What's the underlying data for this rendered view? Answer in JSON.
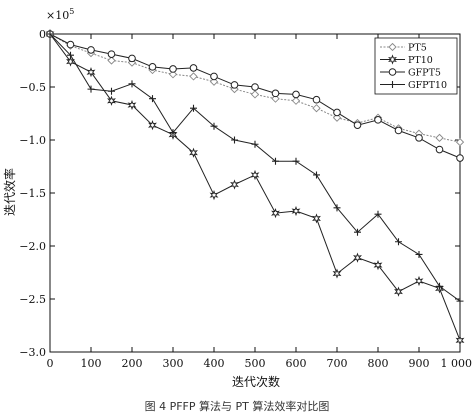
{
  "figure": {
    "caption": "图 4 PFFP 算法与 PT 算法效率对比图"
  },
  "chart_data": {
    "type": "line",
    "title": "",
    "xlabel": "迭代次数",
    "ylabel": "迭代效率",
    "y_multiplier_label": "×10^5",
    "xlim": [
      0,
      1000
    ],
    "ylim": [
      -3.0,
      0
    ],
    "x_ticks": [
      0,
      100,
      200,
      300,
      400,
      500,
      600,
      700,
      800,
      900,
      1000
    ],
    "x_tick_labels": [
      "0",
      "100",
      "200",
      "300",
      "400",
      "500",
      "600",
      "700",
      "800",
      "900",
      "1 000"
    ],
    "y_ticks": [
      0,
      -0.5,
      -1.0,
      -1.5,
      -2.0,
      -2.5,
      -3.0
    ],
    "y_tick_labels": [
      "0",
      "−0.5",
      "−1.0",
      "−1.5",
      "−2.0",
      "−2.5",
      "−3.0"
    ],
    "grid": false,
    "legend_position": "top-right",
    "x": [
      0,
      50,
      100,
      150,
      200,
      250,
      300,
      350,
      400,
      450,
      500,
      550,
      600,
      650,
      700,
      750,
      800,
      850,
      900,
      950,
      1000
    ],
    "series": [
      {
        "name": "PT5",
        "marker": "diamond",
        "color": "#888888",
        "dashed": true,
        "values": [
          0,
          -0.11,
          -0.18,
          -0.25,
          -0.27,
          -0.34,
          -0.38,
          -0.4,
          -0.45,
          -0.52,
          -0.57,
          -0.61,
          -0.63,
          -0.7,
          -0.79,
          -0.84,
          -0.79,
          -0.89,
          -0.94,
          -0.98,
          -1.02
        ]
      },
      {
        "name": "PT10",
        "marker": "star",
        "color": "#222222",
        "dashed": false,
        "values": [
          0,
          -0.26,
          -0.36,
          -0.63,
          -0.67,
          -0.86,
          -0.95,
          -1.12,
          -1.52,
          -1.42,
          -1.33,
          -1.69,
          -1.67,
          -1.74,
          -2.26,
          -2.11,
          -2.18,
          -2.43,
          -2.33,
          -2.4,
          -2.89
        ]
      },
      {
        "name": "GFPT5",
        "marker": "circle",
        "color": "#222222",
        "dashed": false,
        "values": [
          0,
          -0.1,
          -0.15,
          -0.19,
          -0.23,
          -0.31,
          -0.33,
          -0.32,
          -0.4,
          -0.48,
          -0.5,
          -0.56,
          -0.57,
          -0.62,
          -0.74,
          -0.86,
          -0.81,
          -0.91,
          -0.98,
          -1.09,
          -1.17
        ]
      },
      {
        "name": "GFPT10",
        "marker": "plus",
        "color": "#222222",
        "dashed": false,
        "values": [
          0,
          -0.2,
          -0.52,
          -0.54,
          -0.47,
          -0.61,
          -0.93,
          -0.7,
          -0.87,
          -1.0,
          -1.04,
          -1.2,
          -1.2,
          -1.33,
          -1.64,
          -1.87,
          -1.7,
          -1.96,
          -2.08,
          -2.38,
          -2.52
        ]
      }
    ]
  }
}
